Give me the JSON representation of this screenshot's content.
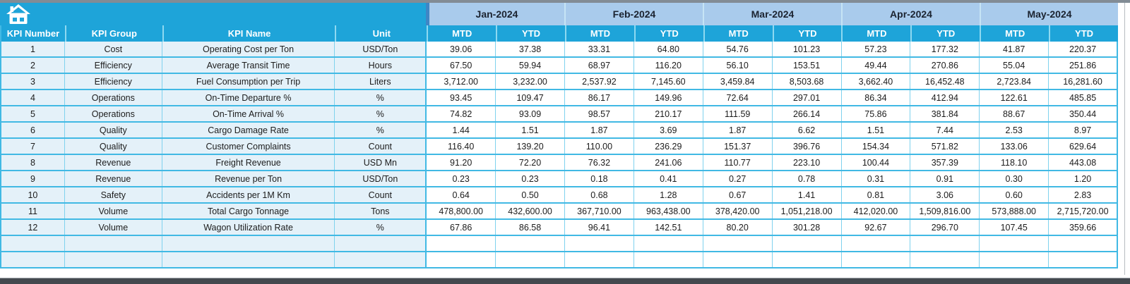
{
  "table": {
    "corner_icon": "home-icon",
    "left_headers": [
      "KPI Number",
      "KPI Group",
      "KPI Name",
      "Unit"
    ],
    "months": [
      "Jan-2024",
      "Feb-2024",
      "Mar-2024",
      "Apr-2024",
      "May-2024"
    ],
    "period_headers": [
      "MTD",
      "YTD"
    ],
    "rows": [
      {
        "number": "1",
        "group": "Cost",
        "name": "Operating Cost per Ton",
        "unit": "USD/Ton",
        "values": [
          "39.06",
          "37.38",
          "33.31",
          "64.80",
          "54.76",
          "101.23",
          "57.23",
          "177.32",
          "41.87",
          "220.37"
        ]
      },
      {
        "number": "2",
        "group": "Efficiency",
        "name": "Average Transit Time",
        "unit": "Hours",
        "values": [
          "67.50",
          "59.94",
          "68.97",
          "116.20",
          "56.10",
          "153.51",
          "49.44",
          "270.86",
          "55.04",
          "251.86"
        ]
      },
      {
        "number": "3",
        "group": "Efficiency",
        "name": "Fuel Consumption per Trip",
        "unit": "Liters",
        "values": [
          "3,712.00",
          "3,232.00",
          "2,537.92",
          "7,145.60",
          "3,459.84",
          "8,503.68",
          "3,662.40",
          "16,452.48",
          "2,723.84",
          "16,281.60"
        ]
      },
      {
        "number": "4",
        "group": "Operations",
        "name": "On-Time Departure %",
        "unit": "%",
        "values": [
          "93.45",
          "109.47",
          "86.17",
          "149.96",
          "72.64",
          "297.01",
          "86.34",
          "412.94",
          "122.61",
          "485.85"
        ]
      },
      {
        "number": "5",
        "group": "Operations",
        "name": "On-Time Arrival %",
        "unit": "%",
        "values": [
          "74.82",
          "93.09",
          "98.57",
          "210.17",
          "111.59",
          "266.14",
          "75.86",
          "381.84",
          "88.67",
          "350.44"
        ]
      },
      {
        "number": "6",
        "group": "Quality",
        "name": "Cargo Damage Rate",
        "unit": "%",
        "values": [
          "1.44",
          "1.51",
          "1.87",
          "3.69",
          "1.87",
          "6.62",
          "1.51",
          "7.44",
          "2.53",
          "8.97"
        ]
      },
      {
        "number": "7",
        "group": "Quality",
        "name": "Customer Complaints",
        "unit": "Count",
        "values": [
          "116.40",
          "139.20",
          "110.00",
          "236.29",
          "151.37",
          "396.76",
          "154.34",
          "571.82",
          "133.06",
          "629.64"
        ]
      },
      {
        "number": "8",
        "group": "Revenue",
        "name": "Freight Revenue",
        "unit": "USD Mn",
        "values": [
          "91.20",
          "72.20",
          "76.32",
          "241.06",
          "110.77",
          "223.10",
          "100.44",
          "357.39",
          "118.10",
          "443.08"
        ]
      },
      {
        "number": "9",
        "group": "Revenue",
        "name": "Revenue per Ton",
        "unit": "USD/Ton",
        "values": [
          "0.23",
          "0.23",
          "0.18",
          "0.41",
          "0.27",
          "0.78",
          "0.31",
          "0.91",
          "0.30",
          "1.20"
        ]
      },
      {
        "number": "10",
        "group": "Safety",
        "name": "Accidents per 1M Km",
        "unit": "Count",
        "values": [
          "0.64",
          "0.50",
          "0.68",
          "1.28",
          "0.67",
          "1.41",
          "0.81",
          "3.06",
          "0.60",
          "2.83"
        ]
      },
      {
        "number": "11",
        "group": "Volume",
        "name": "Total Cargo Tonnage",
        "unit": "Tons",
        "values": [
          "478,800.00",
          "432,600.00",
          "367,710.00",
          "963,438.00",
          "378,420.00",
          "1,051,218.00",
          "412,020.00",
          "1,509,816.00",
          "573,888.00",
          "2,715,720.00"
        ]
      },
      {
        "number": "12",
        "group": "Volume",
        "name": "Wagon Utilization Rate",
        "unit": "%",
        "values": [
          "67.86",
          "86.58",
          "96.41",
          "142.51",
          "80.20",
          "301.28",
          "92.67",
          "296.70",
          "107.45",
          "359.66"
        ]
      }
    ],
    "empty_rows": 2
  },
  "colors": {
    "header_cyan": "#1ea4d9",
    "month_header_blue": "#a9cbec",
    "left_cell_blue": "#e4f1f9",
    "grid_cyan": "#41b9e4",
    "group_divider_blue": "#3e86c5",
    "month_text": "#1b2330",
    "data_text": "#1c1c1c"
  }
}
